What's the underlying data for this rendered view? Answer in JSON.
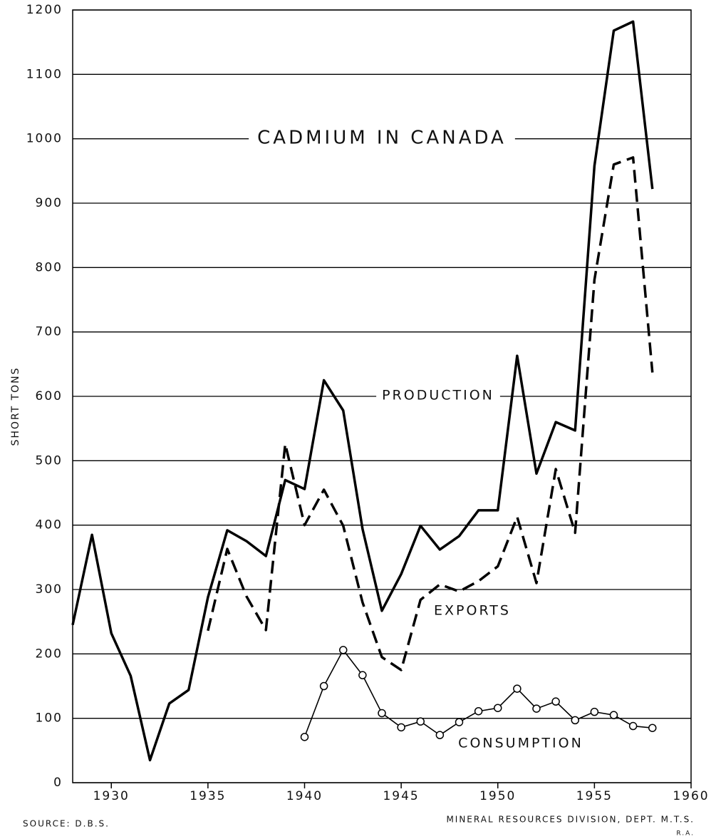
{
  "chart_data": {
    "type": "line",
    "title": "CADMIUM IN CANADA",
    "ylabel": "SHORT TONS",
    "source": "SOURCE: D.B.S.",
    "credit": "MINERAL RESOURCES DIVISION, DEPT. M.T.S.",
    "initials": "R.A.",
    "x": [
      1928,
      1929,
      1930,
      1931,
      1932,
      1933,
      1934,
      1935,
      1936,
      1937,
      1938,
      1939,
      1940,
      1941,
      1942,
      1943,
      1944,
      1945,
      1946,
      1947,
      1948,
      1949,
      1950,
      1951,
      1952,
      1953,
      1954,
      1955,
      1956,
      1957,
      1958
    ],
    "series": [
      {
        "name": "PRODUCTION",
        "color": "#000000",
        "style": "solid",
        "values": [
          245,
          385,
          232,
          166,
          35,
          123,
          144,
          288,
          392,
          375,
          352,
          470,
          456,
          625,
          578,
          394,
          267,
          324,
          399,
          362,
          383,
          423,
          423,
          663,
          480,
          560,
          547,
          958,
          1168,
          1182,
          922
        ]
      },
      {
        "name": "EXPORTS",
        "color": "#000000",
        "style": "dashed",
        "values": [
          null,
          null,
          null,
          null,
          null,
          null,
          null,
          236,
          363,
          289,
          237,
          526,
          400,
          455,
          399,
          280,
          195,
          175,
          284,
          308,
          297,
          313,
          336,
          413,
          310,
          487,
          388,
          781,
          960,
          971,
          637
        ]
      },
      {
        "name": "CONSUMPTION",
        "color": "#000000",
        "style": "thin",
        "marker": "circle",
        "values": [
          null,
          null,
          null,
          null,
          null,
          null,
          null,
          null,
          null,
          null,
          null,
          null,
          71,
          150,
          206,
          167,
          108,
          86,
          95,
          74,
          94,
          111,
          116,
          146,
          115,
          126,
          97,
          110,
          105,
          88,
          85
        ]
      }
    ],
    "xlim": [
      1928,
      1960
    ],
    "xticks": [
      1930,
      1935,
      1940,
      1945,
      1950,
      1955,
      1960
    ],
    "ylim": [
      0,
      1200
    ],
    "yticks": [
      0,
      100,
      200,
      300,
      400,
      500,
      600,
      700,
      800,
      900,
      1000,
      1100,
      1200
    ],
    "grid": true
  }
}
